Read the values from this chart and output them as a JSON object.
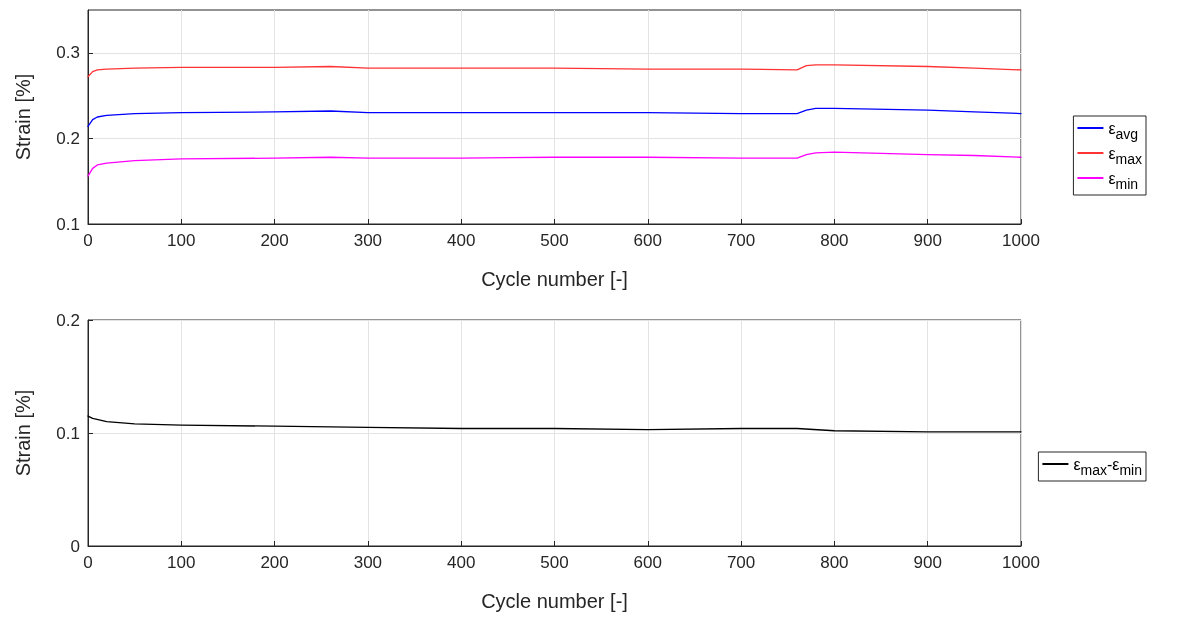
{
  "chart_data": [
    {
      "type": "line",
      "xlabel": "Cycle number [-]",
      "ylabel": "Strain [%]",
      "x": [
        0,
        5,
        10,
        20,
        50,
        100,
        200,
        260,
        300,
        400,
        500,
        600,
        700,
        760,
        770,
        780,
        800,
        900,
        950,
        1000
      ],
      "series": [
        {
          "name": "ε$_{avg}$",
          "color": "#0000ff",
          "values": [
            0.214,
            0.222,
            0.225,
            0.227,
            0.229,
            0.23,
            0.231,
            0.232,
            0.23,
            0.23,
            0.23,
            0.23,
            0.229,
            0.229,
            0.233,
            0.235,
            0.235,
            0.233,
            0.231,
            0.229
          ]
        },
        {
          "name": "ε$_{max}$",
          "color": "#ff3333",
          "values": [
            0.272,
            0.278,
            0.28,
            0.281,
            0.282,
            0.283,
            0.283,
            0.284,
            0.282,
            0.282,
            0.282,
            0.281,
            0.281,
            0.28,
            0.285,
            0.286,
            0.286,
            0.284,
            0.282,
            0.28
          ]
        },
        {
          "name": "ε$_{min}$",
          "color": "#ff00ff",
          "values": [
            0.156,
            0.165,
            0.169,
            0.171,
            0.174,
            0.176,
            0.177,
            0.178,
            0.177,
            0.177,
            0.178,
            0.178,
            0.177,
            0.177,
            0.181,
            0.183,
            0.184,
            0.181,
            0.18,
            0.178
          ]
        }
      ],
      "xlim": [
        0,
        1000
      ],
      "xticks": [
        0,
        100,
        200,
        300,
        400,
        500,
        600,
        700,
        800,
        900,
        1000
      ],
      "ylim": [
        0.1,
        0.35
      ],
      "yticks": [
        0.1,
        0.2,
        0.3
      ],
      "grid": true,
      "legend": "right",
      "marker": "none",
      "line_style": "solid"
    },
    {
      "type": "line",
      "xlabel": "Cycle number [-]",
      "ylabel": "Strain [%]",
      "x": [
        0,
        5,
        20,
        50,
        100,
        200,
        300,
        400,
        500,
        600,
        700,
        760,
        800,
        900,
        1000
      ],
      "series": [
        {
          "name": "ε$_{max}$-ε$_{min}$",
          "color": "#000000",
          "values": [
            0.115,
            0.113,
            0.11,
            0.108,
            0.107,
            0.106,
            0.105,
            0.104,
            0.104,
            0.103,
            0.104,
            0.104,
            0.102,
            0.101,
            0.101
          ]
        }
      ],
      "xlim": [
        0,
        1000
      ],
      "xticks": [
        0,
        100,
        200,
        300,
        400,
        500,
        600,
        700,
        800,
        900,
        1000
      ],
      "ylim": [
        0,
        0.2
      ],
      "yticks": [
        0,
        0.1,
        0.2
      ],
      "grid": true,
      "legend": "right",
      "marker": "none",
      "line_style": "solid"
    }
  ]
}
